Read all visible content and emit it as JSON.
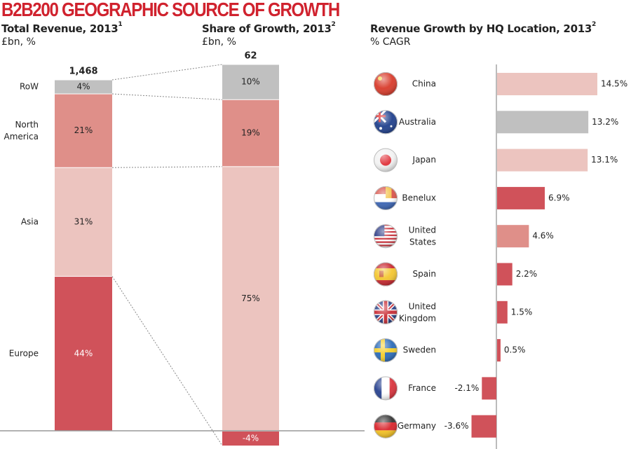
{
  "title": "B2B200 GEOGRAPHIC SOURCE OF GROWTH",
  "colors": {
    "title": "#d0222e",
    "europe": "#d0525a",
    "asia": "#ecc4bf",
    "north_america": "#df8f89",
    "row": "#c0c0c0",
    "axis": "#999999"
  },
  "chart_data": [
    {
      "type": "bar",
      "stacked": true,
      "title": "Total Revenue, 2013",
      "title_sup": "1",
      "ylabel": "£bn, %",
      "total_label": "1,468",
      "categories": [
        "Europe",
        "Asia",
        "North America",
        "RoW"
      ],
      "category_labels": [
        "Europe",
        "Asia",
        "North\nAmerica",
        "RoW"
      ],
      "values": [
        44,
        31,
        21,
        4
      ],
      "value_labels": [
        "44%",
        "31%",
        "21%",
        "4%"
      ]
    },
    {
      "type": "bar",
      "stacked": true,
      "title": "Share of Growth, 2013",
      "title_sup": "2",
      "ylabel": "£bn, %",
      "total_label": "62",
      "categories": [
        "Europe",
        "Asia",
        "North America",
        "RoW"
      ],
      "values": [
        -4,
        75,
        19,
        10
      ],
      "value_labels": [
        "-4%",
        "75%",
        "19%",
        "10%"
      ]
    },
    {
      "type": "bar",
      "orientation": "horizontal",
      "title": "Revenue Growth by HQ Location, 2013",
      "title_sup": "2",
      "xlabel": "% CAGR",
      "categories": [
        "China",
        "Australia",
        "Japan",
        "Benelux",
        "United States",
        "Spain",
        "United Kingdom",
        "Sweden",
        "France",
        "Germany"
      ],
      "category_labels": [
        "China",
        "Australia",
        "Japan",
        "Benelux",
        "United\nStates",
        "Spain",
        "United\nKingdom",
        "Sweden",
        "France",
        "Germany"
      ],
      "values": [
        14.5,
        13.2,
        13.1,
        6.9,
        4.6,
        2.2,
        1.5,
        0.5,
        -2.1,
        -3.6
      ],
      "value_labels": [
        "14.5%",
        "13.2%",
        "13.1%",
        "6.9%",
        "4.6%",
        "2.2%",
        "1.5%",
        "0.5%",
        "-2.1%",
        "-3.6%"
      ],
      "bar_colors": [
        "asia",
        "row",
        "asia",
        "europe",
        "north_america",
        "europe",
        "europe",
        "europe",
        "europe",
        "europe"
      ],
      "icons": [
        "china-flag-icon",
        "australia-flag-icon",
        "japan-flag-icon",
        "benelux-flag-icon",
        "us-flag-icon",
        "spain-flag-icon",
        "uk-flag-icon",
        "sweden-flag-icon",
        "france-flag-icon",
        "germany-flag-icon"
      ]
    }
  ]
}
